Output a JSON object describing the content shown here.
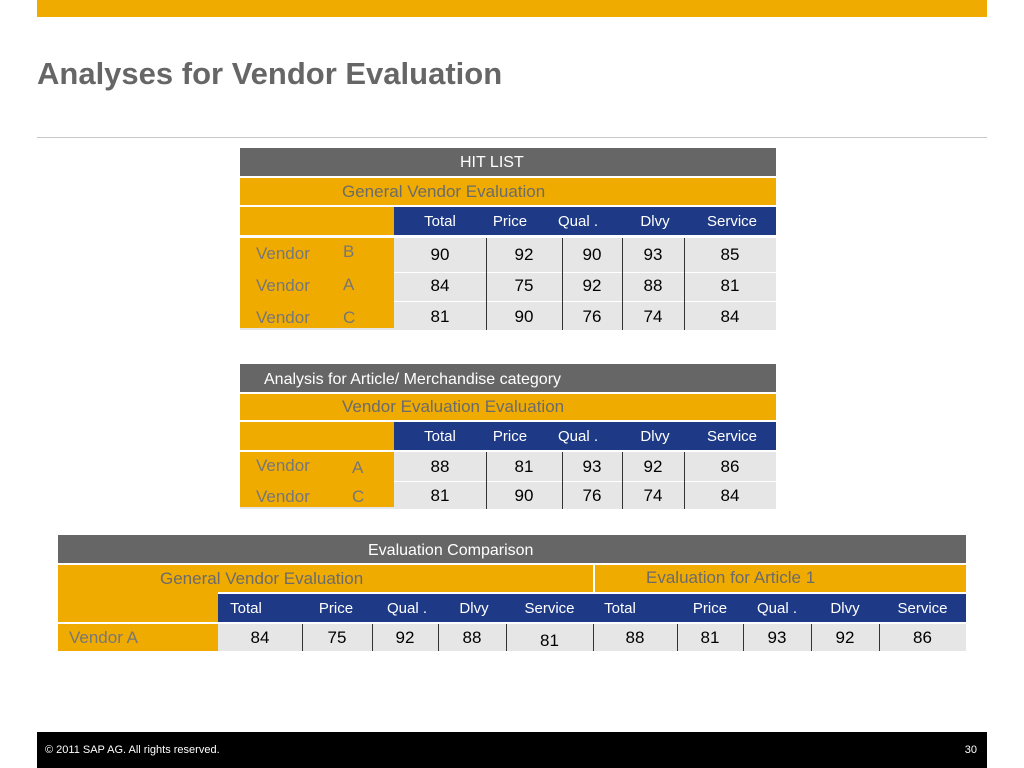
{
  "slide": {
    "title": "Analyses for Vendor Evaluation",
    "footer_copyright": "©  2011 SAP AG. All rights reserved.",
    "page_number": "30"
  },
  "hit_list": {
    "title": "HIT LIST",
    "subtitle": "General Vendor Evaluation",
    "headers": [
      "Total",
      "Price",
      "Qual .",
      "Dlvy",
      "Service"
    ],
    "rows": [
      {
        "vendor": "Vendor",
        "letter": "B",
        "values": [
          "90",
          "92",
          "90",
          "93",
          "85"
        ]
      },
      {
        "vendor": "Vendor",
        "letter": "A",
        "values": [
          "84",
          "75",
          "92",
          "88",
          "81"
        ]
      },
      {
        "vendor": "Vendor",
        "letter": "C",
        "values": [
          "81",
          "90",
          "76",
          "74",
          "84"
        ]
      }
    ]
  },
  "article_analysis": {
    "title": "Analysis for Article/ Merchandise category",
    "subtitle": "Vendor Evaluation Evaluation",
    "headers": [
      "Total",
      "Price",
      "Qual .",
      "Dlvy",
      "Service"
    ],
    "rows": [
      {
        "vendor": "Vendor",
        "letter": "A",
        "values": [
          "88",
          "81",
          "93",
          "92",
          "86"
        ]
      },
      {
        "vendor": "Vendor",
        "letter": "C",
        "values": [
          "81",
          "90",
          "76",
          "74",
          "84"
        ]
      }
    ]
  },
  "comparison": {
    "title": "Evaluation Comparison",
    "left_subtitle": "General Vendor Evaluation",
    "right_subtitle": "Evaluation for Article 1",
    "left_headers": [
      "Total",
      "Price",
      "Qual .",
      "Dlvy",
      "Service"
    ],
    "right_headers": [
      "Total",
      "Price",
      "Qual .",
      "Dlvy",
      "Service"
    ],
    "vendor": "Vendor A",
    "left_values": [
      "84",
      "75",
      "92",
      "88",
      "81"
    ],
    "right_values": [
      "88",
      "81",
      "93",
      "92",
      "86"
    ]
  }
}
